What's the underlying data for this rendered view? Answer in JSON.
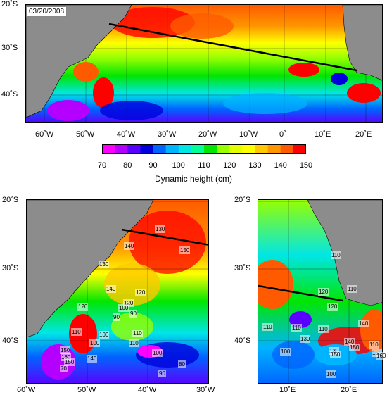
{
  "date_label": "03/20/2008",
  "colorbar": {
    "title": "Dynamic height (cm)",
    "ticks": [
      "70",
      "80",
      "90",
      "100",
      "110",
      "120",
      "130",
      "140",
      "150"
    ],
    "colors": [
      "#ff00ff",
      "#b400ff",
      "#5a00ff",
      "#0000dc",
      "#0064ff",
      "#00b4ff",
      "#00e6e6",
      "#00ff96",
      "#00e600",
      "#96ff00",
      "#e6ff00",
      "#ffff00",
      "#ffc800",
      "#ff9600",
      "#ff5a00",
      "#ff0000"
    ]
  },
  "top_map": {
    "lat_labels": [
      "20˚S",
      "30˚S",
      "40˚S"
    ],
    "lon_labels": [
      "60˚W",
      "50˚W",
      "40˚W",
      "30˚W",
      "20˚W",
      "10˚W",
      "0˚",
      "10˚E",
      "20˚E"
    ]
  },
  "left_map": {
    "lat_labels": [
      "20˚S",
      "30˚S",
      "40˚S"
    ],
    "lon_labels": [
      "60˚W",
      "50˚W",
      "40˚W",
      "30˚W"
    ],
    "contour_labels": [
      "140",
      "150",
      "130",
      "140",
      "120",
      "120",
      "130",
      "120",
      "110",
      "100",
      "100",
      "90",
      "90",
      "110",
      "100",
      "100",
      "150",
      "160",
      "150",
      "140",
      "70",
      "80",
      "90",
      "110"
    ]
  },
  "right_map": {
    "lat_labels": [
      "20˚S",
      "30˚S",
      "40˚S"
    ],
    "lon_labels": [
      "10˚E",
      "20˚E"
    ],
    "contour_labels": [
      "110",
      "110",
      "120",
      "110",
      "110",
      "100",
      "130",
      "130",
      "110",
      "140",
      "120",
      "140",
      "150",
      "110",
      "150",
      "100",
      "150",
      "160"
    ]
  }
}
